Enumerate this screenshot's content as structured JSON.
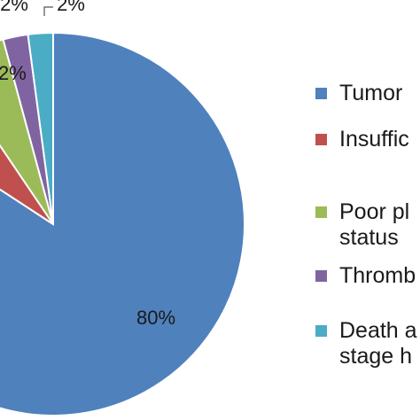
{
  "chart_data": {
    "type": "pie",
    "categories": [
      "Tumor",
      "Insuffic",
      "Poor pl\nstatus",
      "Thromb",
      "Death a\nstage h"
    ],
    "values": [
      80,
      6,
      5,
      2,
      2
    ],
    "data_labels": [
      "80%",
      "",
      "",
      "2%",
      "2%"
    ],
    "colors": [
      "#4F81BD",
      "#C0504D",
      "#9BBB59",
      "#8064A2",
      "#4BACC6"
    ],
    "legend_position": "right",
    "partial_label_left": "2%"
  }
}
